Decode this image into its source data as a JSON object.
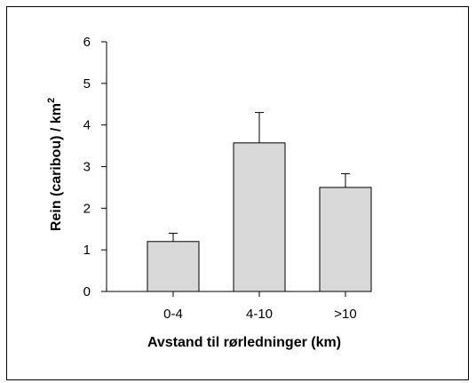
{
  "chart_data": {
    "type": "bar",
    "title": "",
    "xlabel": "Avstand til rørledninger (km)",
    "ylabel_main": "Rein (caribou) / km",
    "ylabel_sup": "2",
    "categories": [
      "0-4",
      "4-10",
      ">10"
    ],
    "values": [
      1.2,
      3.57,
      2.5
    ],
    "error_upper": [
      1.4,
      4.3,
      2.83
    ],
    "ylim": [
      0,
      6
    ],
    "yticks": [
      0,
      1,
      2,
      3,
      4,
      5,
      6
    ],
    "grid": false,
    "colors": {
      "bar_fill": "#d9d9d9",
      "bar_stroke": "#000000",
      "axis": "#000000"
    }
  }
}
